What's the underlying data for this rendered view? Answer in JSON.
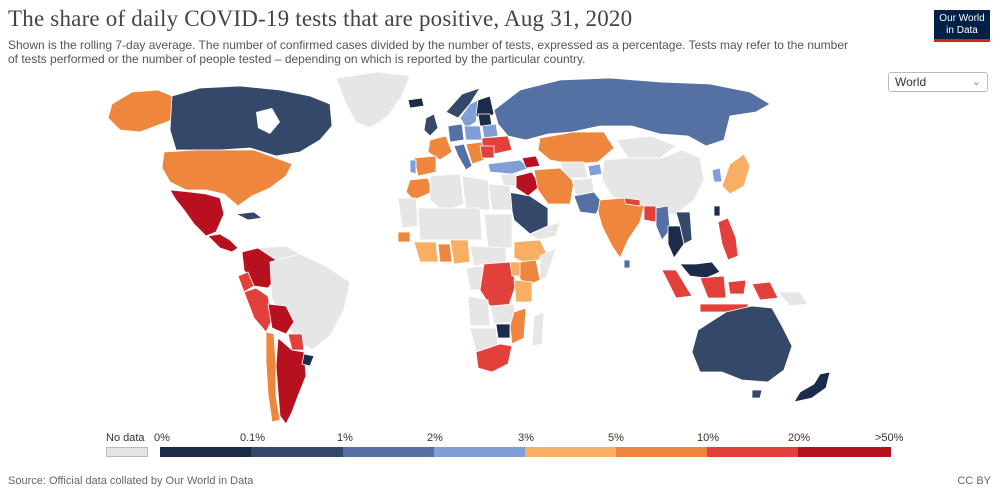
{
  "title": "The share of daily COVID-19 tests that are positive, Aug 31, 2020",
  "subtitle": "Shown is the rolling 7-day average. The number of confirmed cases divided by the number of tests, expressed as a percentage. Tests may refer to the number of tests performed or the number of people tested – depending on which is reported by the particular country.",
  "logo": {
    "line1": "Our World",
    "line2": "in Data"
  },
  "region_selector": {
    "selected": "World",
    "chevron": "chevron-down-icon"
  },
  "legend": {
    "no_data_label": "No data",
    "no_data_color": "#e5e5e5",
    "ticks": [
      "0%",
      "0.1%",
      "1%",
      "2%",
      "3%",
      "5%",
      "10%",
      "20%",
      ">50%"
    ],
    "bins": [
      {
        "from": "0%",
        "to": "0.1%",
        "color": "#1c2b4a"
      },
      {
        "from": "0.1%",
        "to": "1%",
        "color": "#35486a"
      },
      {
        "from": "1%",
        "to": "2%",
        "color": "#5571a3"
      },
      {
        "from": "2%",
        "to": "3%",
        "color": "#7f9fd6"
      },
      {
        "from": "3%",
        "to": "5%",
        "color": "#f8ae63"
      },
      {
        "from": "5%",
        "to": "10%",
        "color": "#ef863d"
      },
      {
        "from": "10%",
        "to": "20%",
        "color": "#e2413b"
      },
      {
        "from": "20%",
        "to": ">50%",
        "color": "#b71120"
      }
    ]
  },
  "footer": {
    "source": "Source: Official data collated by Our World in Data",
    "license": "CC BY"
  },
  "map_colors": {
    "no_data": "#e6e6e6",
    "border": "#ffffff"
  }
}
